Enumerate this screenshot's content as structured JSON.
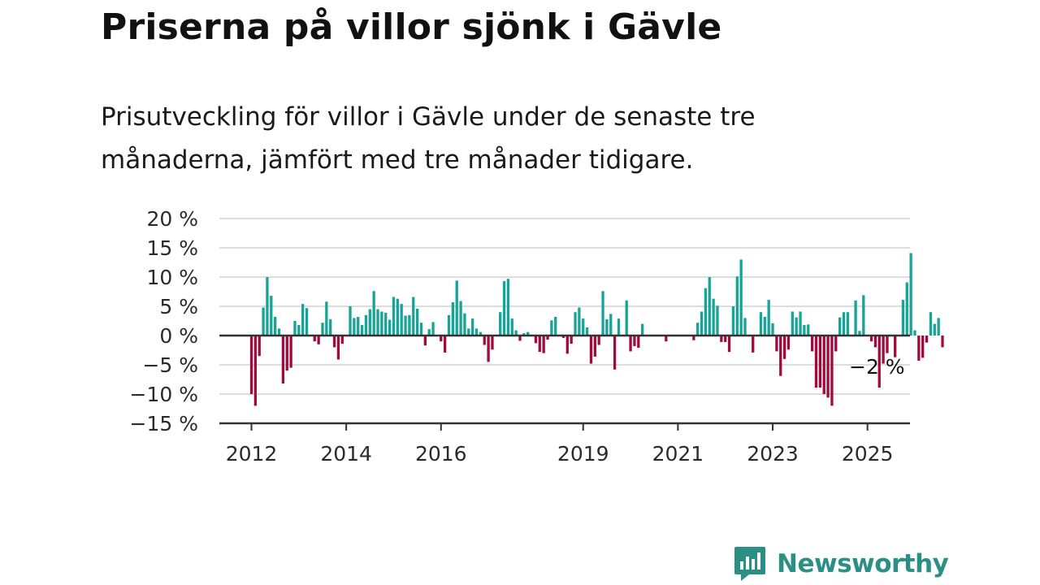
{
  "header": {
    "title": "Priserna på villor sjönk i Gävle",
    "subtitle": "Prisutveckling för villor i Gävle under de senaste tre månaderna, jämfört med tre månader tidigare."
  },
  "brand": {
    "name": "Newsworthy",
    "icon": "newsworthy-logo-icon"
  },
  "colors": {
    "positive": "#16a497",
    "negative": "#a00a3c",
    "grid": "#dddddd",
    "axis": "#333333"
  },
  "chart_data": {
    "type": "bar",
    "start": "2012-01",
    "frequency": "monthly",
    "y_ticks": [
      20,
      15,
      10,
      5,
      0,
      -5,
      -10,
      -15
    ],
    "y_tick_labels": [
      "20 %",
      "15 %",
      "10 %",
      "5 %",
      "0 %",
      "−5 %",
      "−10 %",
      "−15 %"
    ],
    "ylim": [
      -15,
      20
    ],
    "x_tick_labels": [
      "2012",
      "2014",
      "2016",
      "2019",
      "2021",
      "2023",
      "2025"
    ],
    "x_tick_positions": [
      "2012-01",
      "2014-01",
      "2016-01",
      "2019-01",
      "2021-01",
      "2023-01",
      "2025-01"
    ],
    "grid": true,
    "annotation": {
      "text": "−2 %",
      "value": -2
    },
    "values": [
      -10,
      -12,
      -3.5,
      4.8,
      10,
      6.8,
      3.2,
      1.2,
      -8.2,
      -6,
      -5.5,
      2.5,
      1.8,
      5.4,
      4.7,
      0,
      -1,
      -1.5,
      2.2,
      5.8,
      2.8,
      -2,
      -4.1,
      -1.4,
      0,
      5,
      3,
      3.2,
      1.8,
      3.5,
      4.5,
      7.6,
      4.5,
      4.1,
      3.9,
      2.7,
      6.6,
      6.3,
      5.4,
      3.4,
      3.5,
      6.6,
      4.6,
      2.2,
      -1.7,
      1.1,
      2.3,
      0,
      -1,
      -2.9,
      3.5,
      5.7,
      9.4,
      5.9,
      3.8,
      1.2,
      2.9,
      1.2,
      0.6,
      -1.6,
      -4.5,
      -2.4,
      0,
      4,
      9.3,
      9.7,
      2.9,
      0.9,
      -0.9,
      0.4,
      0.6,
      0,
      -1.3,
      -2.8,
      -3,
      -0.7,
      2.6,
      3.2,
      0,
      -0.4,
      -3.1,
      -1.4,
      4,
      4.8,
      2.9,
      1.4,
      -4.8,
      -3.6,
      -1.6,
      7.6,
      2.8,
      3.7,
      -5.8,
      2.9,
      0,
      6,
      -2.7,
      -1.8,
      -2.1,
      2,
      0,
      0,
      0,
      0,
      0,
      -1,
      0,
      0,
      0,
      0,
      0,
      0,
      -0.8,
      2.2,
      4.1,
      8.1,
      10,
      6.3,
      5.1,
      -1.1,
      -1.1,
      -2.8,
      5,
      10.1,
      13,
      3,
      0,
      -2.9,
      0,
      4,
      3.2,
      6.1,
      2.1,
      -2.7,
      -6.9,
      -4,
      -2.4,
      4.1,
      3.1,
      4.1,
      1.8,
      1.9,
      -2.7,
      -8.9,
      -8.9,
      -10,
      -10.6,
      -12,
      -2.7,
      3.1,
      4,
      4,
      0,
      6,
      0.8,
      6.9,
      0,
      -1,
      -2,
      -8.9,
      -4.8,
      -3,
      0,
      -3.7,
      0,
      6.1,
      9.1,
      14.1,
      0.9,
      -4.3,
      -3.8,
      -1.2,
      4,
      2,
      3,
      -2
    ]
  }
}
